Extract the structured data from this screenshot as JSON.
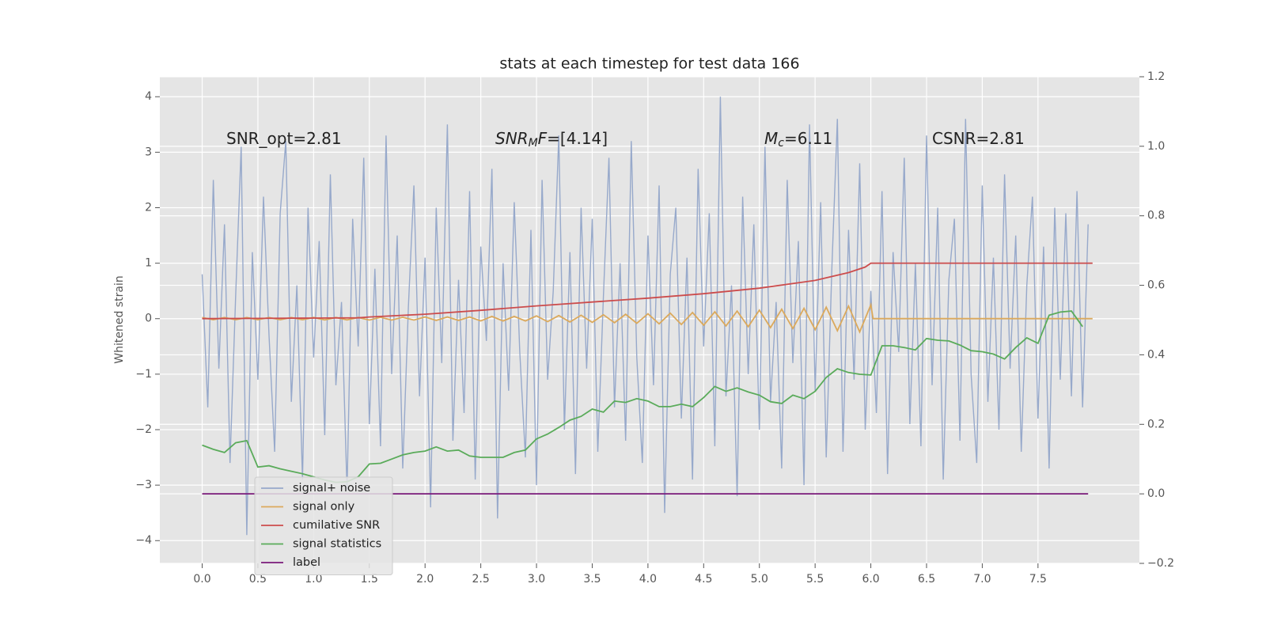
{
  "chart_data": {
    "type": "line",
    "title": "stats at each timestep for test data 166",
    "ylabel": "Whitened strain",
    "xlim": [
      -0.38,
      8.41
    ],
    "ylim": [
      -4.41,
      4.36
    ],
    "y2lim": [
      -0.2,
      1.2
    ],
    "grid": true,
    "legend": "lower left",
    "xticks": [
      {
        "value": 0,
        "label": "0.0"
      },
      0.5,
      {
        "value": 1,
        "label": "1.0"
      },
      1.5,
      {
        "value": 2,
        "label": "2.0"
      },
      2.5,
      {
        "value": 3,
        "label": "3.0"
      },
      3.5,
      {
        "value": 4,
        "label": "4.0"
      },
      4.5,
      {
        "value": 5,
        "label": "5.0"
      },
      5.5,
      {
        "value": 6,
        "label": "6.0"
      },
      6.5,
      {
        "value": 7,
        "label": "7.0"
      },
      7.5
    ],
    "yticks": [
      {
        "value": -4,
        "label": "−4"
      },
      {
        "value": -3,
        "label": "−3"
      },
      {
        "value": -2,
        "label": "−2"
      },
      {
        "value": -1,
        "label": "−1"
      },
      0,
      1,
      2,
      3,
      4
    ],
    "y2ticks": [
      {
        "value": -0.2,
        "label": "−0.2"
      },
      {
        "value": 0,
        "label": "0.0"
      },
      0.2,
      0.4,
      0.6,
      0.8,
      {
        "value": 1,
        "label": "1.0"
      },
      1.2
    ],
    "annotations": [
      {
        "parts": [
          {
            "text": "SNR_opt=2.81"
          }
        ]
      },
      {
        "parts": [
          {
            "text": "SNR",
            "italic": true
          },
          {
            "text": "M",
            "italic": true,
            "sub": true
          },
          {
            "text": "F",
            "italic": true
          },
          {
            "text": "=[4.14]"
          }
        ]
      },
      {
        "parts": [
          {
            "text": "M",
            "italic": true
          },
          {
            "text": "c",
            "italic": true,
            "sub": true
          },
          {
            "text": "=6.11"
          }
        ]
      },
      {
        "parts": [
          {
            "text": "CSNR=2.81"
          }
        ]
      }
    ],
    "series": [
      {
        "name": "signal+ noise",
        "color": "#97a9cb",
        "axis": "y",
        "x": [
          0,
          0.05,
          0.1,
          0.15,
          0.2,
          0.25,
          0.3,
          0.35,
          0.4,
          0.45,
          0.5,
          0.55,
          0.6,
          0.65,
          0.7,
          0.75,
          0.8,
          0.85,
          0.9,
          0.95,
          1,
          1.05,
          1.1,
          1.15,
          1.2,
          1.25,
          1.3,
          1.35,
          1.4,
          1.45,
          1.5,
          1.55,
          1.6,
          1.65,
          1.7,
          1.75,
          1.8,
          1.85,
          1.9,
          1.95,
          2,
          2.05,
          2.1,
          2.15,
          2.2,
          2.25,
          2.3,
          2.35,
          2.4,
          2.45,
          2.5,
          2.55,
          2.6,
          2.65,
          2.7,
          2.75,
          2.8,
          2.85,
          2.9,
          2.95,
          3,
          3.05,
          3.1,
          3.15,
          3.2,
          3.25,
          3.3,
          3.35,
          3.4,
          3.45,
          3.5,
          3.55,
          3.6,
          3.65,
          3.7,
          3.75,
          3.8,
          3.85,
          3.9,
          3.95,
          4,
          4.05,
          4.1,
          4.15,
          4.2,
          4.25,
          4.3,
          4.35,
          4.4,
          4.45,
          4.5,
          4.55,
          4.6,
          4.65,
          4.7,
          4.75,
          4.8,
          4.85,
          4.9,
          4.95,
          5,
          5.05,
          5.1,
          5.15,
          5.2,
          5.25,
          5.3,
          5.35,
          5.4,
          5.45,
          5.5,
          5.55,
          5.6,
          5.65,
          5.7,
          5.75,
          5.8,
          5.85,
          5.9,
          5.95,
          6,
          6.05,
          6.1,
          6.15,
          6.2,
          6.25,
          6.3,
          6.35,
          6.4,
          6.45,
          6.5,
          6.55,
          6.6,
          6.65,
          6.7,
          6.75,
          6.8,
          6.85,
          6.9,
          6.95,
          7,
          7.05,
          7.1,
          7.15,
          7.2,
          7.25,
          7.3,
          7.35,
          7.4,
          7.45,
          7.5,
          7.55,
          7.6,
          7.65,
          7.7,
          7.75,
          7.8,
          7.85,
          7.9,
          7.95
        ],
        "values": [
          0.8,
          -1.6,
          2.5,
          -0.9,
          1.7,
          -2.6,
          0.4,
          3.1,
          -3.9,
          1.2,
          -1.1,
          2.2,
          -0.3,
          -2.4,
          1.9,
          3.2,
          -1.5,
          0.6,
          -2.9,
          2.0,
          -0.7,
          1.4,
          -2.1,
          2.6,
          -1.2,
          0.3,
          -3.1,
          1.8,
          -0.5,
          2.9,
          -1.9,
          0.9,
          -2.3,
          3.3,
          -1.0,
          1.5,
          -2.7,
          0.2,
          2.4,
          -1.4,
          1.1,
          -3.4,
          2.0,
          -0.8,
          3.5,
          -2.2,
          0.7,
          -1.7,
          2.3,
          -2.9,
          1.3,
          -0.4,
          2.7,
          -3.6,
          1.0,
          -1.3,
          2.1,
          -0.6,
          -2.5,
          1.6,
          -3.0,
          2.5,
          -1.1,
          0.5,
          3.3,
          -2.0,
          1.2,
          -2.8,
          2.0,
          -0.9,
          1.8,
          -2.4,
          0.4,
          2.9,
          -1.6,
          1.0,
          -2.2,
          3.2,
          -0.7,
          -2.6,
          1.5,
          -1.2,
          2.4,
          -3.5,
          0.8,
          2.0,
          -1.8,
          1.1,
          -2.9,
          2.7,
          -0.5,
          1.9,
          -2.3,
          4.0,
          -1.4,
          0.6,
          -3.2,
          2.2,
          -1.0,
          1.7,
          -2.0,
          3.1,
          -1.5,
          0.3,
          -2.7,
          2.5,
          -0.8,
          1.4,
          -3.0,
          3.5,
          -1.3,
          2.1,
          -2.5,
          0.9,
          3.6,
          -2.4,
          1.6,
          -1.1,
          2.8,
          -2.0,
          0.5,
          -1.7,
          2.3,
          -2.8,
          1.2,
          -0.6,
          2.9,
          -1.9,
          1.0,
          -2.3,
          3.3,
          -1.2,
          2.0,
          -2.9,
          0.7,
          1.8,
          -2.2,
          3.6,
          -1.0,
          -2.6,
          2.4,
          -1.5,
          1.1,
          -2.0,
          2.6,
          -0.9,
          1.5,
          -2.4,
          0.6,
          2.2,
          -1.8,
          1.3,
          -2.7,
          2.0,
          -1.1,
          1.9,
          -1.4,
          2.3,
          -1.6,
          1.7
        ]
      },
      {
        "name": "signal only",
        "color": "#dba95c",
        "axis": "y",
        "x": [
          0,
          0.1,
          0.2,
          0.3,
          0.4,
          0.5,
          0.6,
          0.7,
          0.8,
          0.9,
          1,
          1.1,
          1.2,
          1.3,
          1.4,
          1.5,
          1.6,
          1.7,
          1.8,
          1.9,
          2,
          2.1,
          2.2,
          2.3,
          2.4,
          2.5,
          2.6,
          2.7,
          2.8,
          2.9,
          3,
          3.1,
          3.2,
          3.3,
          3.4,
          3.5,
          3.6,
          3.7,
          3.8,
          3.9,
          4,
          4.1,
          4.2,
          4.3,
          4.4,
          4.5,
          4.6,
          4.7,
          4.8,
          4.9,
          5,
          5.1,
          5.2,
          5.3,
          5.4,
          5.5,
          5.6,
          5.7,
          5.8,
          5.9,
          6,
          6.02,
          7.99
        ],
        "values": [
          0.02,
          -0.02,
          0.02,
          -0.02,
          0.02,
          -0.02,
          0.02,
          -0.02,
          0.02,
          -0.02,
          0.022,
          -0.022,
          0.022,
          -0.022,
          0.022,
          -0.025,
          0.025,
          -0.025,
          0.025,
          -0.025,
          0.03,
          -0.03,
          0.03,
          -0.03,
          0.03,
          -0.04,
          0.04,
          -0.04,
          0.04,
          -0.04,
          0.05,
          -0.053,
          0.056,
          -0.059,
          0.062,
          -0.066,
          0.07,
          -0.074,
          0.079,
          -0.083,
          0.088,
          -0.094,
          0.099,
          -0.105,
          0.111,
          -0.117,
          0.124,
          -0.131,
          0.138,
          -0.145,
          0.153,
          -0.161,
          0.17,
          -0.178,
          0.188,
          -0.197,
          0.207,
          -0.217,
          0.228,
          -0.239,
          0.25,
          0,
          0
        ]
      },
      {
        "name": "cumilative SNR",
        "color": "#cc4c4c",
        "axis": "y",
        "x": [
          0,
          0.5,
          1,
          1.4,
          1.5,
          2,
          2.5,
          3,
          3.5,
          4,
          4.5,
          5,
          5.5,
          5.8,
          5.95,
          6,
          6.1,
          7.99
        ],
        "values": [
          0,
          0.005,
          0.01,
          0.015,
          0.03,
          0.08,
          0.15,
          0.23,
          0.3,
          0.37,
          0.45,
          0.55,
          0.69,
          0.83,
          0.93,
          1,
          1,
          1
        ]
      },
      {
        "name": "signal statistics",
        "color": "#5aab5a",
        "axis": "y2",
        "x": [
          0,
          0.1,
          0.2,
          0.3,
          0.4,
          0.5,
          0.6,
          0.7,
          0.8,
          0.9,
          1,
          1.1,
          1.2,
          1.3,
          1.4,
          1.5,
          1.6,
          1.7,
          1.8,
          1.9,
          2,
          2.1,
          2.2,
          2.3,
          2.4,
          2.5,
          2.6,
          2.7,
          2.8,
          2.9,
          3,
          3.1,
          3.2,
          3.3,
          3.4,
          3.5,
          3.6,
          3.7,
          3.8,
          3.9,
          4,
          4.1,
          4.2,
          4.3,
          4.4,
          4.5,
          4.6,
          4.7,
          4.8,
          4.9,
          5,
          5.1,
          5.2,
          5.3,
          5.4,
          5.5,
          5.6,
          5.7,
          5.8,
          5.9,
          6,
          6.1,
          6.2,
          6.3,
          6.4,
          6.5,
          6.6,
          6.7,
          6.8,
          6.9,
          7,
          7.1,
          7.2,
          7.3,
          7.4,
          7.5,
          7.6,
          7.7,
          7.8,
          7.9
        ],
        "values": [
          0.14,
          0.128,
          0.119,
          0.147,
          0.153,
          0.077,
          0.081,
          0.072,
          0.065,
          0.058,
          0.049,
          0.04,
          0.033,
          0.035,
          0.049,
          0.086,
          0.088,
          0.1,
          0.112,
          0.119,
          0.123,
          0.135,
          0.123,
          0.126,
          0.109,
          0.105,
          0.105,
          0.105,
          0.119,
          0.126,
          0.158,
          0.172,
          0.191,
          0.212,
          0.223,
          0.244,
          0.235,
          0.267,
          0.263,
          0.274,
          0.267,
          0.251,
          0.251,
          0.258,
          0.251,
          0.277,
          0.309,
          0.295,
          0.305,
          0.293,
          0.284,
          0.265,
          0.26,
          0.284,
          0.274,
          0.295,
          0.335,
          0.36,
          0.349,
          0.344,
          0.342,
          0.426,
          0.426,
          0.421,
          0.414,
          0.447,
          0.442,
          0.44,
          0.428,
          0.412,
          0.409,
          0.402,
          0.388,
          0.421,
          0.449,
          0.433,
          0.514,
          0.523,
          0.526,
          0.481
        ]
      },
      {
        "name": "label",
        "color": "#7a1a7a",
        "axis": "y2",
        "x": [
          0,
          7.95
        ],
        "values": [
          0,
          0
        ]
      }
    ]
  }
}
